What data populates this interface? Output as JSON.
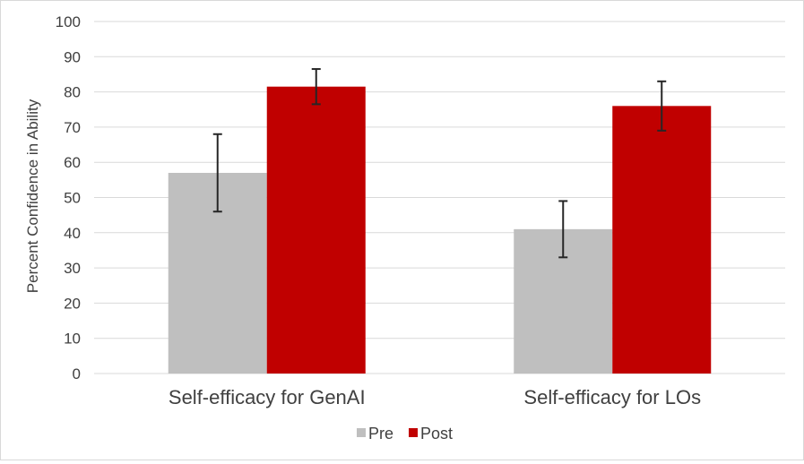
{
  "chart_data": {
    "type": "bar",
    "title": "",
    "xlabel": "",
    "ylabel": "Percent Confidence in Ability",
    "ylim": [
      0,
      100
    ],
    "yticks": [
      0,
      10,
      20,
      30,
      40,
      50,
      60,
      70,
      80,
      90,
      100
    ],
    "grid": true,
    "legend_position": "bottom",
    "categories": [
      "Self-efficacy for GenAI",
      "Self-efficacy for LOs"
    ],
    "series": [
      {
        "name": "Pre",
        "color": "#bfbfbf",
        "values": [
          57,
          41
        ],
        "error_low": [
          46,
          33
        ],
        "error_high": [
          68,
          49
        ]
      },
      {
        "name": "Post",
        "color": "#c00000",
        "values": [
          81.5,
          76
        ],
        "error_low": [
          76.5,
          69
        ],
        "error_high": [
          86.5,
          83
        ]
      }
    ]
  }
}
